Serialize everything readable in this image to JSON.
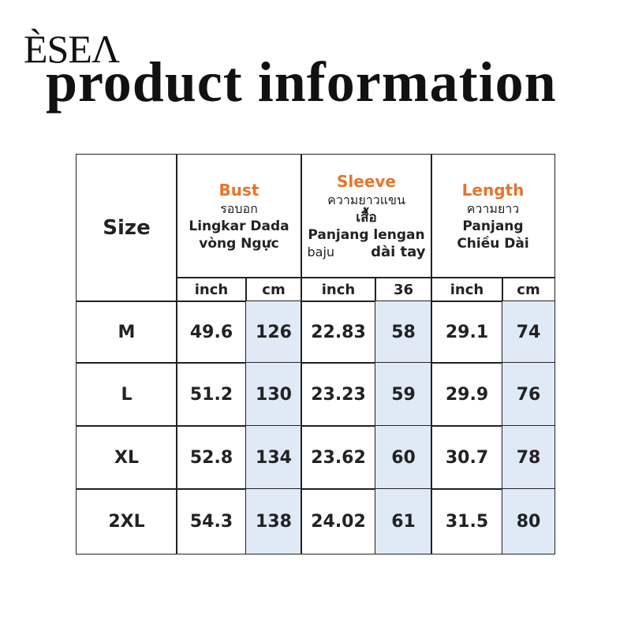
{
  "brand": "ÈSEΛ",
  "title": "product information",
  "table": {
    "size_header": "Size",
    "groups": [
      {
        "name": "Bust",
        "lines": [
          "รอบอก",
          "Lingkar Dada",
          "vòng Ngực"
        ]
      },
      {
        "name": "Sleeve",
        "lines": [
          "ความยาวแขน",
          "เสื้อ",
          "Panjang lengan"
        ],
        "tail": [
          "baju",
          "dài tay"
        ]
      },
      {
        "name": "Length",
        "lines": [
          "ความยาว",
          "Panjang",
          "Chiều Dài"
        ]
      }
    ],
    "units": [
      "inch",
      "cm",
      "inch",
      "36",
      "inch",
      "cm"
    ],
    "rows": [
      [
        "M",
        "49.6",
        "126",
        "22.83",
        "58",
        "29.1",
        "74"
      ],
      [
        "L",
        "51.2",
        "130",
        "23.23",
        "59",
        "29.9",
        "76"
      ],
      [
        "XL",
        "52.8",
        "134",
        "23.62",
        "60",
        "30.7",
        "78"
      ],
      [
        "2XL",
        "54.3",
        "138",
        "24.02",
        "61",
        "31.5",
        "80"
      ]
    ]
  }
}
